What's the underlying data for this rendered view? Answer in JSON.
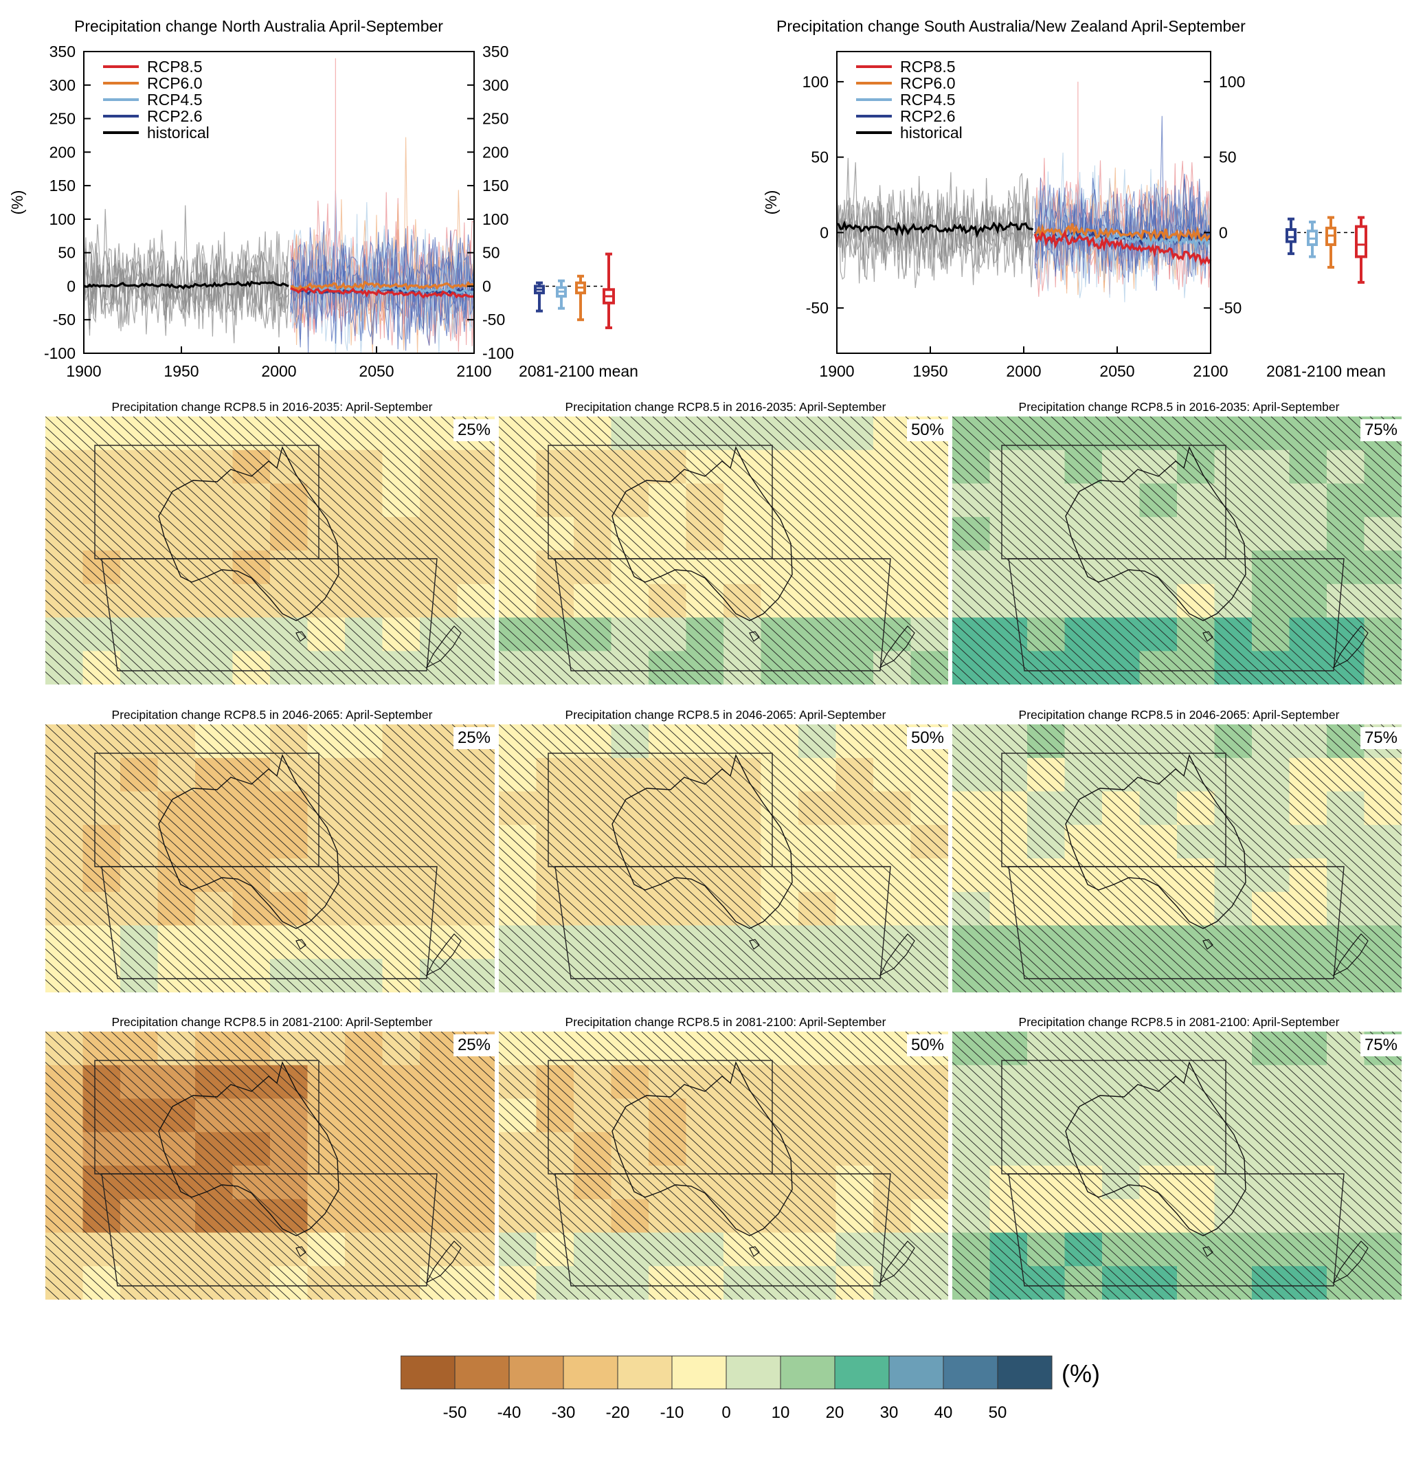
{
  "timeseries": [
    {
      "id": "north",
      "title": "Precipitation change North Australia April-September",
      "ylabel": "(%)",
      "xlim": [
        1900,
        2100
      ],
      "ylim": [
        -100,
        350
      ],
      "yticks": [
        "350",
        "300",
        "250",
        "200",
        "150",
        "100",
        "50",
        "0",
        "-50",
        "-100"
      ],
      "xticks": [
        "1900",
        "1950",
        "2000",
        "2050",
        "2100"
      ],
      "period_label": "2081-2100 mean"
    },
    {
      "id": "south",
      "title": "Precipitation change South Australia/New Zealand April-September",
      "ylabel": "(%)",
      "xlim": [
        1900,
        2100
      ],
      "ylim": [
        -80,
        120
      ],
      "yticks": [
        "100",
        "50",
        "0",
        "-50"
      ],
      "xticks": [
        "1900",
        "1950",
        "2000",
        "2050",
        "2100"
      ],
      "period_label": "2081-2100 mean"
    }
  ],
  "legend": [
    {
      "label": "RCP8.5",
      "color": "#d7262b"
    },
    {
      "label": "RCP6.0",
      "color": "#e07b2c"
    },
    {
      "label": "RCP4.5",
      "color": "#7fb0d6"
    },
    {
      "label": "RCP2.6",
      "color": "#2b3f8c"
    },
    {
      "label": "historical",
      "color": "#000000"
    }
  ],
  "maps": {
    "titles": [
      "Precipitation change RCP8.5 in 2016-2035: April-September",
      "Precipitation change RCP8.5 in 2046-2065: April-September",
      "Precipitation change RCP8.5 in 2081-2100: April-September"
    ],
    "percentiles": [
      "25%",
      "50%",
      "75%"
    ]
  },
  "colorbar": {
    "unit": "(%)",
    "labels": [
      "-50",
      "-40",
      "-30",
      "-20",
      "-10",
      "0",
      "10",
      "20",
      "30",
      "40",
      "50"
    ],
    "colors": [
      "#a8622c",
      "#c17c3e",
      "#d89c5a",
      "#efc47c",
      "#f5dc9a",
      "#fef3b5",
      "#d5e6bd",
      "#9ecf9b",
      "#55b895",
      "#6b9fb8",
      "#4a7a99",
      "#2d5470"
    ]
  },
  "chart_data": [
    {
      "type": "line",
      "title": "Precipitation change North Australia April-September",
      "ylabel": "(%)",
      "xlim": [
        1900,
        2100
      ],
      "ylim": [
        -100,
        350
      ],
      "series": [
        {
          "name": "historical",
          "x": [
            1900,
            1925,
            1950,
            1975,
            2000,
            2005
          ],
          "values": [
            0,
            2,
            0,
            3,
            5,
            0
          ]
        },
        {
          "name": "RCP2.6",
          "x": [
            2006,
            2025,
            2050,
            2075,
            2100
          ],
          "values": [
            -5,
            -8,
            -5,
            -7,
            -8
          ]
        },
        {
          "name": "RCP4.5",
          "x": [
            2006,
            2025,
            2050,
            2075,
            2100
          ],
          "values": [
            -3,
            -5,
            -4,
            -6,
            -8
          ]
        },
        {
          "name": "RCP6.0",
          "x": [
            2006,
            2025,
            2050,
            2075,
            2100
          ],
          "values": [
            -2,
            0,
            2,
            0,
            0
          ]
        },
        {
          "name": "RCP8.5",
          "x": [
            2006,
            2025,
            2050,
            2075,
            2100
          ],
          "values": [
            -5,
            -8,
            -10,
            -12,
            -15
          ]
        }
      ],
      "boxes_2081_2100": [
        {
          "name": "RCP2.6",
          "min": -37,
          "q1": -10,
          "median": -5,
          "q3": 0,
          "max": 5
        },
        {
          "name": "RCP4.5",
          "min": -33,
          "q1": -15,
          "median": -8,
          "q3": -2,
          "max": 8
        },
        {
          "name": "RCP6.0",
          "min": -50,
          "q1": -10,
          "median": -2,
          "q3": 5,
          "max": 15
        },
        {
          "name": "RCP8.5",
          "min": -62,
          "q1": -25,
          "median": -15,
          "q3": -5,
          "max": 48
        }
      ]
    },
    {
      "type": "line",
      "title": "Precipitation change South Australia/New Zealand April-September",
      "ylabel": "(%)",
      "xlim": [
        1900,
        2100
      ],
      "ylim": [
        -80,
        120
      ],
      "series": [
        {
          "name": "historical",
          "x": [
            1900,
            1925,
            1950,
            1975,
            2000,
            2005
          ],
          "values": [
            5,
            2,
            3,
            2,
            5,
            2
          ]
        },
        {
          "name": "RCP2.6",
          "x": [
            2006,
            2025,
            2050,
            2075,
            2100
          ],
          "values": [
            -3,
            -2,
            -3,
            -3,
            -4
          ]
        },
        {
          "name": "RCP4.5",
          "x": [
            2006,
            2025,
            2050,
            2075,
            2100
          ],
          "values": [
            -2,
            -3,
            -4,
            -5,
            -6
          ]
        },
        {
          "name": "RCP6.0",
          "x": [
            2006,
            2025,
            2050,
            2075,
            2100
          ],
          "values": [
            0,
            1,
            0,
            -1,
            -2
          ]
        },
        {
          "name": "RCP8.5",
          "x": [
            2006,
            2025,
            2050,
            2075,
            2100
          ],
          "values": [
            -2,
            -5,
            -8,
            -12,
            -18
          ]
        }
      ],
      "boxes_2081_2100": [
        {
          "name": "RCP2.6",
          "min": -14,
          "q1": -6,
          "median": -3,
          "q3": 2,
          "max": 9
        },
        {
          "name": "RCP4.5",
          "min": -16,
          "q1": -8,
          "median": -4,
          "q3": 1,
          "max": 7
        },
        {
          "name": "RCP6.0",
          "min": -23,
          "q1": -8,
          "median": -2,
          "q3": 3,
          "max": 10
        },
        {
          "name": "RCP8.5",
          "min": -33,
          "q1": -16,
          "median": -8,
          "q3": 4,
          "max": 10
        }
      ]
    }
  ]
}
